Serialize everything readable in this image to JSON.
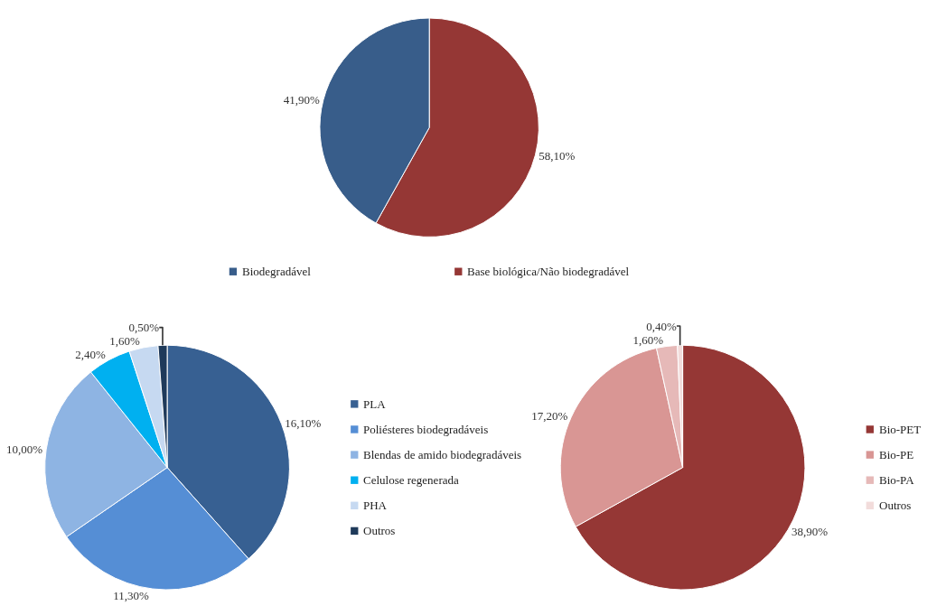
{
  "chart_data": [
    {
      "type": "pie",
      "categories": [
        "Biodegradável",
        "Base biológica/Não biodegradável"
      ],
      "values": [
        41.9,
        58.1
      ],
      "colors": [
        "#385d8a",
        "#953735"
      ],
      "value_labels": [
        "41,90%",
        "58,10%"
      ],
      "legend": "bottom"
    },
    {
      "type": "pie",
      "categories": [
        "PLA",
        "Poliésteres biodegradáveis",
        "Blendas de amido biodegradáveis",
        "Celulose regenerada",
        "PHA",
        "Outros"
      ],
      "values": [
        16.1,
        11.3,
        10.0,
        2.4,
        1.6,
        0.5
      ],
      "colors": [
        "#376092",
        "#558ed5",
        "#8eb4e3",
        "#00b0f0",
        "#c6d9f1",
        "#1f3a5a"
      ],
      "value_labels": [
        "16,10%",
        "11,30%",
        "10,00%",
        "2,40%",
        "1,60%",
        "0,50%"
      ],
      "legend": "right"
    },
    {
      "type": "pie",
      "categories": [
        "Bio-PET",
        "Bio-PE",
        "Bio-PA",
        "Outros"
      ],
      "values": [
        38.9,
        17.2,
        1.6,
        0.4
      ],
      "colors": [
        "#953735",
        "#d99694",
        "#e6b9b8",
        "#f2dcdb"
      ],
      "value_labels": [
        "38,90%",
        "17,20%",
        "1,60%",
        "0,40%"
      ],
      "legend": "right"
    }
  ]
}
